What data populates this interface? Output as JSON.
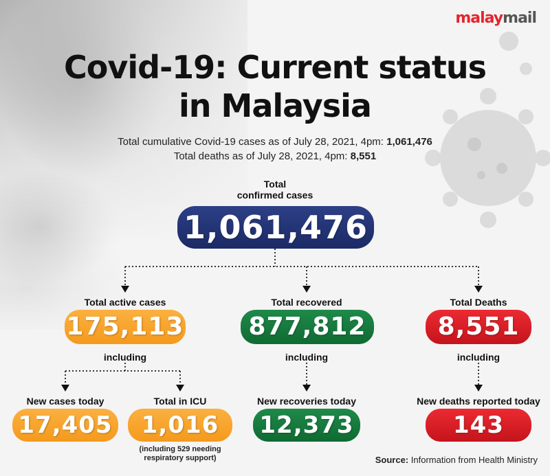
{
  "logo": {
    "part1": "malay",
    "part2": "mail"
  },
  "title": {
    "line1": "Covid-19: Current status",
    "line2": "in Malaysia"
  },
  "subtitle": {
    "line1_text": "Total cumulative Covid-19 cases as of July 28, 2021, 4pm: ",
    "line1_value": "1,061,476",
    "line2_text": "Total deaths as of July 28, 2021, 4pm: ",
    "line2_value": "8,551"
  },
  "total": {
    "label_line1": "Total",
    "label_line2": "confirmed cases",
    "value": "1,061,476"
  },
  "active": {
    "label": "Total active cases",
    "value": "175,113",
    "including": "including"
  },
  "recovered": {
    "label": "Total recovered",
    "value": "877,812",
    "including": "including"
  },
  "deaths": {
    "label": "Total Deaths",
    "value": "8,551",
    "including": "including"
  },
  "new_cases": {
    "label": "New cases today",
    "value": "17,405"
  },
  "icu": {
    "label": "Total in ICU",
    "value": "1,016",
    "note_line1": "(including 529 needing",
    "note_line2": "respiratory support)"
  },
  "new_recoveries": {
    "label": "New recoveries today",
    "value": "12,373"
  },
  "new_deaths": {
    "label": "New deaths reported today",
    "value": "143"
  },
  "source": {
    "label": "Source:",
    "text": " Information from Health Ministry"
  },
  "colors": {
    "navy": "#1b2a66",
    "orange": "#f49a1c",
    "green": "#0f6a32",
    "red": "#c4141c",
    "logo_red": "#e3262f"
  }
}
